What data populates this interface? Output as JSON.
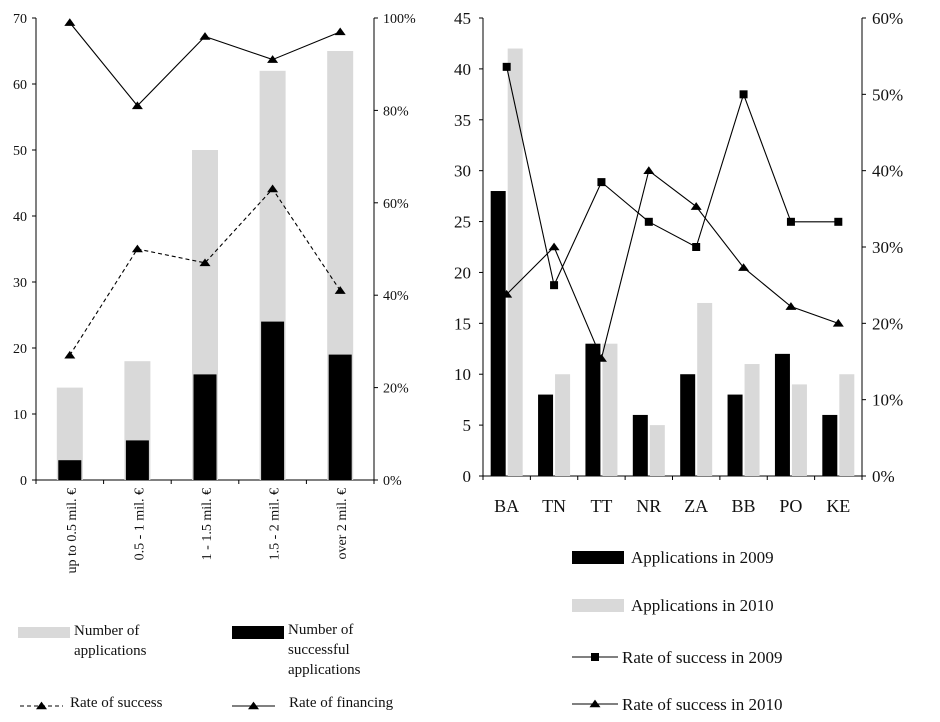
{
  "chart_data": [
    {
      "type": "bar",
      "categories": [
        "up to 0.5 mil. €",
        "0.5 - 1 mil. €",
        "1 - 1.5 mil. €",
        "1.5 - 2 mil. €",
        "over 2 mil. €"
      ],
      "series": [
        {
          "name": "Number of applications",
          "kind": "bar",
          "axis": "left",
          "values": [
            14,
            18,
            50,
            62,
            65
          ],
          "color": "#d9d9d9"
        },
        {
          "name": "Number of successful applications",
          "kind": "bar",
          "axis": "left",
          "values": [
            3,
            6,
            16,
            24,
            19
          ],
          "color": "#000000"
        },
        {
          "name": "Rate of success",
          "kind": "line",
          "axis": "right",
          "style": "dashed",
          "marker": "triangle",
          "values": [
            0.27,
            0.5,
            0.47,
            0.63,
            0.41
          ],
          "color": "#000000"
        },
        {
          "name": "Rate of financing",
          "kind": "line",
          "axis": "right",
          "style": "solid",
          "marker": "triangle",
          "values": [
            0.99,
            0.81,
            0.96,
            0.91,
            0.97
          ],
          "color": "#000000"
        }
      ],
      "ylim": [
        0,
        70
      ],
      "yticks": [
        "0",
        "10",
        "20",
        "30",
        "40",
        "50",
        "60",
        "70"
      ],
      "y2lim": [
        0,
        1
      ],
      "y2ticks": [
        "0%",
        "20%",
        "40%",
        "60%",
        "80%",
        "100%"
      ],
      "legend": "bottom",
      "grid": false,
      "legend_labels": {
        "applications": "Number of\napplications",
        "successful": "Number of\nsuccessful\napplications",
        "success_rate": "Rate of success",
        "financing_rate": "Rate of financing"
      }
    },
    {
      "type": "bar",
      "categories": [
        "BA",
        "TN",
        "TT",
        "NR",
        "ZA",
        "BB",
        "PO",
        "KE"
      ],
      "series": [
        {
          "name": "Applications  in 2009",
          "kind": "bar",
          "axis": "left",
          "values": [
            28,
            8,
            13,
            6,
            10,
            8,
            12,
            6
          ],
          "color": "#000000"
        },
        {
          "name": "Applications  in 2010",
          "kind": "bar",
          "axis": "left",
          "values": [
            42,
            10,
            13,
            5,
            17,
            11,
            9,
            10
          ],
          "color": "#d9d9d9"
        },
        {
          "name": "Rate of success in 2009",
          "kind": "line",
          "axis": "right",
          "style": "solid",
          "marker": "square",
          "values": [
            0.536,
            0.25,
            0.385,
            0.333,
            0.3,
            0.5,
            0.333,
            0.333
          ],
          "color": "#000000"
        },
        {
          "name": "Rate of success in 2010",
          "kind": "line",
          "axis": "right",
          "style": "solid",
          "marker": "triangle",
          "values": [
            0.238,
            0.3,
            0.154,
            0.4,
            0.353,
            0.273,
            0.222,
            0.2
          ],
          "color": "#000000"
        }
      ],
      "ylim": [
        0,
        45
      ],
      "yticks": [
        "0",
        "5",
        "10",
        "15",
        "20",
        "25",
        "30",
        "35",
        "40",
        "45"
      ],
      "y2lim": [
        0,
        0.6
      ],
      "y2ticks": [
        "0%",
        "10%",
        "20%",
        "30%",
        "40%",
        "50%",
        "60%"
      ],
      "legend": "bottom",
      "grid": false
    }
  ]
}
